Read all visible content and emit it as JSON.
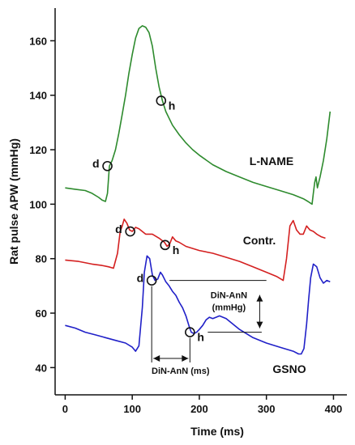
{
  "chart_data": {
    "type": "line",
    "xlabel": "Time (ms)",
    "ylabel": "Rat pulse APW (mmHg)",
    "xlim": [
      -15,
      420
    ],
    "ylim": [
      30,
      172
    ],
    "x_ticks": [
      0,
      100,
      200,
      300,
      400
    ],
    "y_ticks": [
      40,
      60,
      80,
      100,
      120,
      140,
      160
    ],
    "grid": false,
    "legend": "none",
    "series": [
      {
        "name": "L-NAME",
        "color": "#2e8b2e",
        "x": [
          0,
          15,
          30,
          40,
          50,
          55,
          60,
          63,
          66,
          70,
          75,
          80,
          85,
          90,
          95,
          100,
          105,
          110,
          115,
          120,
          125,
          130,
          135,
          140,
          145,
          150,
          160,
          170,
          180,
          190,
          200,
          220,
          240,
          260,
          280,
          300,
          320,
          340,
          355,
          362,
          365,
          368,
          370,
          372,
          374,
          376,
          380,
          385,
          390,
          395
        ],
        "y": [
          106,
          105.5,
          105,
          104,
          102.5,
          101.5,
          101,
          104,
          114,
          116,
          120,
          126,
          133,
          140,
          148,
          155,
          161,
          164.5,
          165.5,
          165,
          163,
          158,
          150,
          143,
          138,
          134,
          129,
          125.5,
          122.5,
          120,
          118,
          114.5,
          112,
          110,
          108,
          106.5,
          105,
          103.5,
          102,
          101,
          100.5,
          100,
          104,
          108,
          110,
          106,
          110,
          116,
          124,
          134
        ]
      },
      {
        "name": "Contr.",
        "color": "#d42020",
        "x": [
          0,
          20,
          40,
          55,
          65,
          72,
          78,
          82,
          85,
          88,
          92,
          96,
          100,
          105,
          110,
          120,
          130,
          140,
          148,
          152,
          156,
          160,
          165,
          170,
          180,
          200,
          220,
          240,
          260,
          280,
          300,
          315,
          325,
          330,
          335,
          340,
          345,
          350,
          355,
          360,
          365,
          370,
          375,
          382,
          388
        ],
        "y": [
          79.5,
          79,
          78,
          77.5,
          77,
          76.5,
          82,
          90,
          92,
          94.5,
          93,
          90.5,
          90,
          91.5,
          91,
          89,
          89,
          87.5,
          86,
          84.5,
          85.5,
          88,
          86.5,
          86,
          84.5,
          83,
          82,
          80.5,
          79,
          77,
          75,
          73.5,
          72,
          80,
          92,
          94,
          90.5,
          89,
          89,
          92,
          90.5,
          90,
          89,
          88,
          87.5
        ]
      },
      {
        "name": "GSNO",
        "color": "#2020c8",
        "x": [
          0,
          15,
          30,
          45,
          60,
          75,
          90,
          100,
          105,
          110,
          115,
          118,
          122,
          126,
          130,
          134,
          138,
          142,
          145,
          150,
          155,
          160,
          165,
          170,
          175,
          180,
          185,
          188,
          192,
          196,
          200,
          205,
          210,
          215,
          220,
          225,
          230,
          240,
          250,
          260,
          280,
          300,
          320,
          340,
          348,
          352,
          356,
          360,
          363,
          366,
          370,
          375,
          380,
          385,
          390,
          395
        ],
        "y": [
          55.5,
          54.5,
          53,
          52,
          51,
          50,
          49,
          47.5,
          46,
          48,
          62,
          75,
          81,
          80,
          74,
          72,
          72.5,
          75,
          74,
          71.5,
          70,
          68,
          66.5,
          64,
          62,
          59,
          55,
          53,
          52.5,
          53,
          54,
          55.5,
          57.5,
          58.5,
          58,
          58.5,
          59,
          58,
          56,
          54,
          51,
          49,
          47.5,
          46,
          45,
          45,
          47,
          56,
          65,
          73,
          78,
          77,
          73,
          71,
          72,
          71.5
        ]
      }
    ],
    "series_labels": [
      "L-NAME",
      "Contr.",
      "GSNO"
    ],
    "points": [
      {
        "series": "L-NAME",
        "label": "d",
        "x": 63,
        "y": 114
      },
      {
        "series": "L-NAME",
        "label": "h",
        "x": 143,
        "y": 138
      },
      {
        "series": "Contr.",
        "label": "d",
        "x": 97,
        "y": 90
      },
      {
        "series": "Contr.",
        "label": "h",
        "x": 149,
        "y": 85
      },
      {
        "series": "GSNO",
        "label": "d",
        "x": 129,
        "y": 72
      },
      {
        "series": "GSNO",
        "label": "h",
        "x": 186,
        "y": 53
      }
    ],
    "annotations": {
      "amplitude_label_line1": "DiN-AnN",
      "amplitude_label_line2": "(mmHg)",
      "time_label": "DiN-AnN (ms)"
    }
  }
}
